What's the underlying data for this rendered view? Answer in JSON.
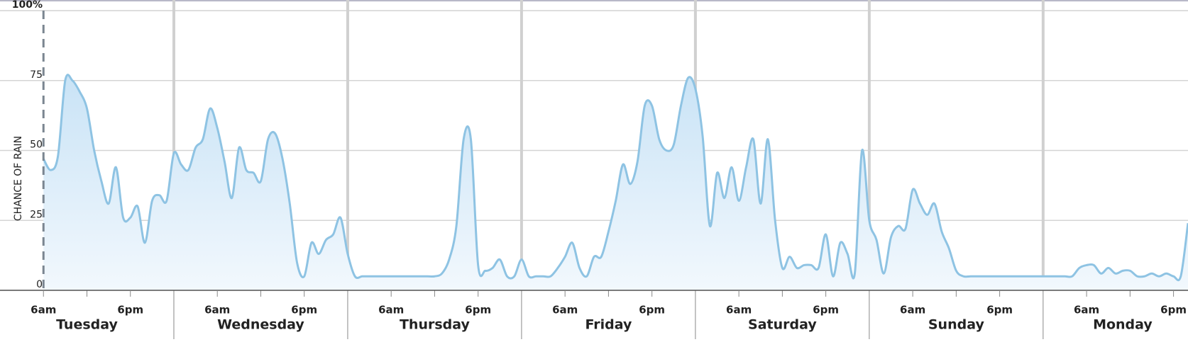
{
  "chart_data": {
    "type": "area",
    "y_label": "CHANCE OF RAIN",
    "days": [
      "Tuesday",
      "Wednesday",
      "Thursday",
      "Friday",
      "Saturday",
      "Sunday",
      "Monday"
    ],
    "x": [
      6,
      7,
      8,
      9,
      10,
      11,
      12,
      13,
      14,
      15,
      16,
      17,
      18,
      19,
      20,
      21,
      22,
      23,
      24,
      25,
      26,
      27,
      28,
      29,
      30,
      31,
      32,
      33,
      34,
      35,
      36,
      37,
      38,
      39,
      40,
      41,
      42,
      43,
      44,
      45,
      46,
      47,
      48,
      49,
      50,
      51,
      52,
      53,
      54,
      55,
      56,
      57,
      58,
      59,
      60,
      61,
      62,
      63,
      64,
      65,
      66,
      67,
      68,
      69,
      70,
      71,
      72,
      73,
      74,
      75,
      76,
      77,
      78,
      79,
      80,
      81,
      82,
      83,
      84,
      85,
      86,
      87,
      88,
      89,
      90,
      91,
      92,
      93,
      94,
      95,
      96,
      97,
      98,
      99,
      100,
      101,
      102,
      103,
      104,
      105,
      106,
      107,
      108,
      109,
      110,
      111,
      112,
      113,
      114,
      115,
      116,
      117,
      118,
      119,
      120,
      121,
      122,
      123,
      124,
      125,
      126,
      127,
      128,
      129,
      130,
      131,
      132,
      133,
      134,
      135,
      136,
      137,
      138,
      139,
      140,
      141,
      142,
      143,
      144,
      145,
      146,
      147,
      148,
      149,
      150,
      151,
      152,
      153,
      154,
      155,
      156,
      157,
      158,
      159,
      160,
      161,
      162,
      163,
      164
    ],
    "series": [
      {
        "name": "Chance of rain",
        "color": "#8ec3e3",
        "values": [
          47,
          43,
          48,
          75,
          75,
          71,
          65,
          50,
          39,
          31,
          44,
          26,
          26,
          30,
          17,
          32,
          34,
          32,
          49,
          45,
          43,
          51,
          54,
          65,
          58,
          46,
          33,
          51,
          43,
          42,
          39,
          54,
          56,
          47,
          31,
          10,
          5,
          17,
          13,
          18,
          20,
          26,
          13,
          5,
          5,
          5,
          5,
          5,
          5,
          5,
          5,
          5,
          5,
          5,
          5,
          6,
          11,
          23,
          54,
          54,
          9,
          7,
          8,
          11,
          5,
          5,
          11,
          5,
          5,
          5,
          5,
          8,
          12,
          17,
          8,
          5,
          12,
          12,
          21,
          32,
          45,
          38,
          46,
          66,
          66,
          54,
          50,
          52,
          66,
          76,
          72,
          55,
          23,
          42,
          33,
          44,
          32,
          44,
          54,
          31,
          54,
          25,
          8,
          12,
          8,
          9,
          9,
          8,
          20,
          5,
          17,
          13,
          6,
          50,
          25,
          18,
          6,
          19,
          23,
          22,
          36,
          31,
          27,
          31,
          21,
          15,
          7,
          5,
          5,
          5,
          5,
          5,
          5,
          5,
          5,
          5,
          5,
          5,
          5,
          5,
          5,
          5,
          5,
          8,
          9,
          9,
          6,
          8,
          6,
          7,
          7,
          5,
          5,
          6,
          5,
          6,
          5,
          5,
          24
        ]
      }
    ],
    "xlim": [
      0,
      164
    ],
    "xticks": [
      {
        "value": 6,
        "label": "6am"
      },
      {
        "value": 18,
        "label": "6pm"
      },
      {
        "value": 30,
        "label": "6am"
      },
      {
        "value": 42,
        "label": "6pm"
      },
      {
        "value": 54,
        "label": "6am"
      },
      {
        "value": 66,
        "label": "6pm"
      },
      {
        "value": 78,
        "label": "6am"
      },
      {
        "value": 90,
        "label": "6pm"
      },
      {
        "value": 102,
        "label": "6am"
      },
      {
        "value": 114,
        "label": "6pm"
      },
      {
        "value": 126,
        "label": "6am"
      },
      {
        "value": 138,
        "label": "6pm"
      },
      {
        "value": 150,
        "label": "6am"
      },
      {
        "value": 162,
        "label": "6pm"
      }
    ],
    "ylim": [
      0,
      100
    ],
    "yticks": [
      0,
      25,
      50,
      75,
      {
        "value": 100,
        "label": "100%"
      }
    ],
    "grid": true
  }
}
